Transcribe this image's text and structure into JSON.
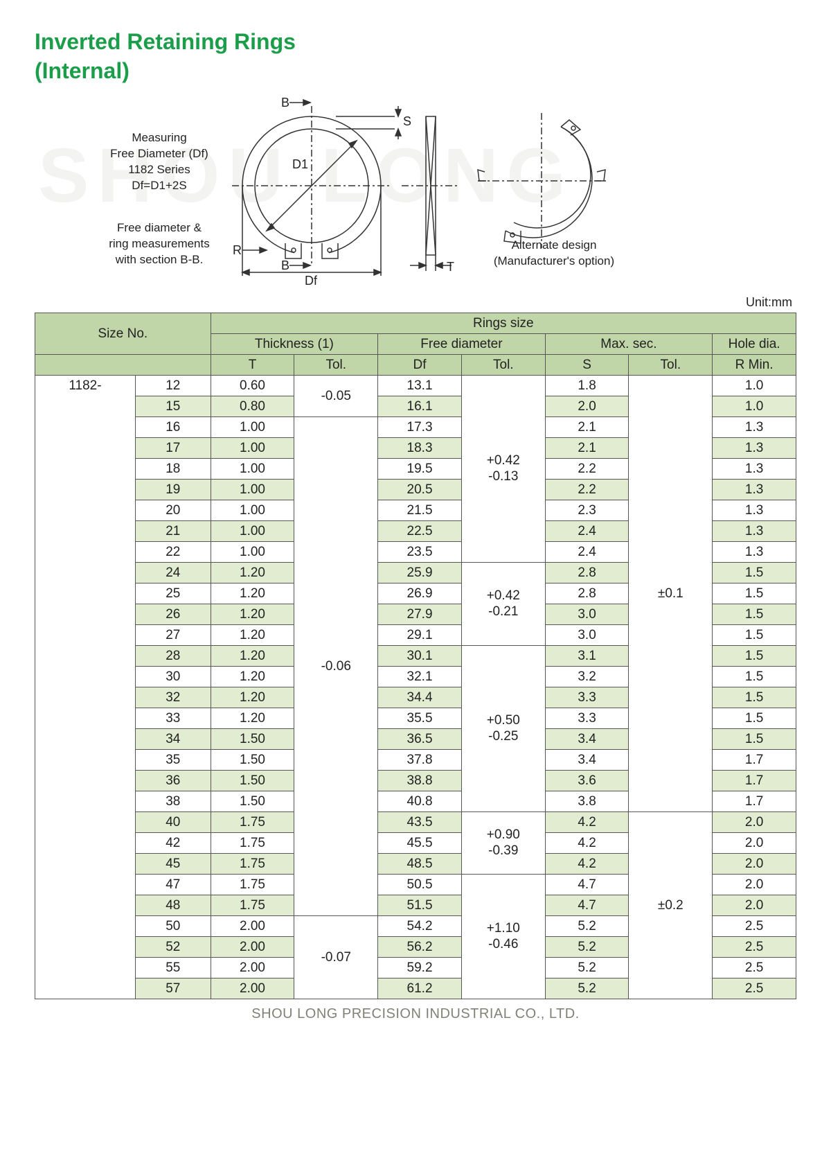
{
  "title_line1": "Inverted Retaining Rings",
  "title_line2": "(Internal)",
  "watermark": "SHOU LONG",
  "diagram": {
    "measuring_l1": "Measuring",
    "measuring_l2": "Free Diameter (Df)",
    "measuring_l3": "1182 Series",
    "measuring_l4": "Df=D1+2S",
    "free_l1": "Free diameter &",
    "free_l2": "ring measurements",
    "free_l3": "with section B-B.",
    "alt_l1": "Alternate design",
    "alt_l2": "(Manufacturer's option)",
    "B_top": "B",
    "B_bot": "B",
    "S": "S",
    "D1": "D1",
    "Df": "Df",
    "T": "T",
    "R": "R"
  },
  "unit_label": "Unit:mm",
  "headers": {
    "size_no": "Size No.",
    "rings_size": "Rings size",
    "thickness": "Thickness (1)",
    "free_diameter": "Free diameter",
    "max_sec": "Max. sec.",
    "hole_dia": "Hole dia.",
    "T": "T",
    "Tol": "Tol.",
    "Df": "Df",
    "S": "S",
    "RMin": "R Min."
  },
  "series_prefix": "1182-",
  "t_tol_1": "-0.05",
  "t_tol_2": "-0.06",
  "t_tol_3": "-0.07",
  "df_tol_1a": "+0.42",
  "df_tol_1b": "-0.13",
  "df_tol_2a": "+0.42",
  "df_tol_2b": "-0.21",
  "df_tol_3a": "+0.50",
  "df_tol_3b": "-0.25",
  "df_tol_4a": "+0.90",
  "df_tol_4b": "-0.39",
  "df_tol_5a": "+1.10",
  "df_tol_5b": "-0.46",
  "s_tol_1": "±0.1",
  "s_tol_2": "±0.2",
  "rows": [
    {
      "no": "12",
      "t": "0.60",
      "df": "13.1",
      "s": "1.8",
      "r": "1.0"
    },
    {
      "no": "15",
      "t": "0.80",
      "df": "16.1",
      "s": "2.0",
      "r": "1.0"
    },
    {
      "no": "16",
      "t": "1.00",
      "df": "17.3",
      "s": "2.1",
      "r": "1.3"
    },
    {
      "no": "17",
      "t": "1.00",
      "df": "18.3",
      "s": "2.1",
      "r": "1.3"
    },
    {
      "no": "18",
      "t": "1.00",
      "df": "19.5",
      "s": "2.2",
      "r": "1.3"
    },
    {
      "no": "19",
      "t": "1.00",
      "df": "20.5",
      "s": "2.2",
      "r": "1.3"
    },
    {
      "no": "20",
      "t": "1.00",
      "df": "21.5",
      "s": "2.3",
      "r": "1.3"
    },
    {
      "no": "21",
      "t": "1.00",
      "df": "22.5",
      "s": "2.4",
      "r": "1.3"
    },
    {
      "no": "22",
      "t": "1.00",
      "df": "23.5",
      "s": "2.4",
      "r": "1.3"
    },
    {
      "no": "24",
      "t": "1.20",
      "df": "25.9",
      "s": "2.8",
      "r": "1.5"
    },
    {
      "no": "25",
      "t": "1.20",
      "df": "26.9",
      "s": "2.8",
      "r": "1.5"
    },
    {
      "no": "26",
      "t": "1.20",
      "df": "27.9",
      "s": "3.0",
      "r": "1.5"
    },
    {
      "no": "27",
      "t": "1.20",
      "df": "29.1",
      "s": "3.0",
      "r": "1.5"
    },
    {
      "no": "28",
      "t": "1.20",
      "df": "30.1",
      "s": "3.1",
      "r": "1.5"
    },
    {
      "no": "30",
      "t": "1.20",
      "df": "32.1",
      "s": "3.2",
      "r": "1.5"
    },
    {
      "no": "32",
      "t": "1.20",
      "df": "34.4",
      "s": "3.3",
      "r": "1.5"
    },
    {
      "no": "33",
      "t": "1.20",
      "df": "35.5",
      "s": "3.3",
      "r": "1.5"
    },
    {
      "no": "34",
      "t": "1.50",
      "df": "36.5",
      "s": "3.4",
      "r": "1.5"
    },
    {
      "no": "35",
      "t": "1.50",
      "df": "37.8",
      "s": "3.4",
      "r": "1.7"
    },
    {
      "no": "36",
      "t": "1.50",
      "df": "38.8",
      "s": "3.6",
      "r": "1.7"
    },
    {
      "no": "38",
      "t": "1.50",
      "df": "40.8",
      "s": "3.8",
      "r": "1.7"
    },
    {
      "no": "40",
      "t": "1.75",
      "df": "43.5",
      "s": "4.2",
      "r": "2.0"
    },
    {
      "no": "42",
      "t": "1.75",
      "df": "45.5",
      "s": "4.2",
      "r": "2.0"
    },
    {
      "no": "45",
      "t": "1.75",
      "df": "48.5",
      "s": "4.2",
      "r": "2.0"
    },
    {
      "no": "47",
      "t": "1.75",
      "df": "50.5",
      "s": "4.7",
      "r": "2.0"
    },
    {
      "no": "48",
      "t": "1.75",
      "df": "51.5",
      "s": "4.7",
      "r": "2.0"
    },
    {
      "no": "50",
      "t": "2.00",
      "df": "54.2",
      "s": "5.2",
      "r": "2.5"
    },
    {
      "no": "52",
      "t": "2.00",
      "df": "56.2",
      "s": "5.2",
      "r": "2.5"
    },
    {
      "no": "55",
      "t": "2.00",
      "df": "59.2",
      "s": "5.2",
      "r": "2.5"
    },
    {
      "no": "57",
      "t": "2.00",
      "df": "61.2",
      "s": "5.2",
      "r": "2.5"
    }
  ],
  "footer": "SHOU LONG PRECISION INDUSTRIAL CO., LTD.",
  "colors": {
    "title": "#1c9d4a",
    "header_bg": "#c1d6a8",
    "alt_row_bg": "#e1ecd0",
    "border": "#555555",
    "text": "#222222",
    "watermark": "#f3f3f1",
    "footer": "#7f8375"
  }
}
